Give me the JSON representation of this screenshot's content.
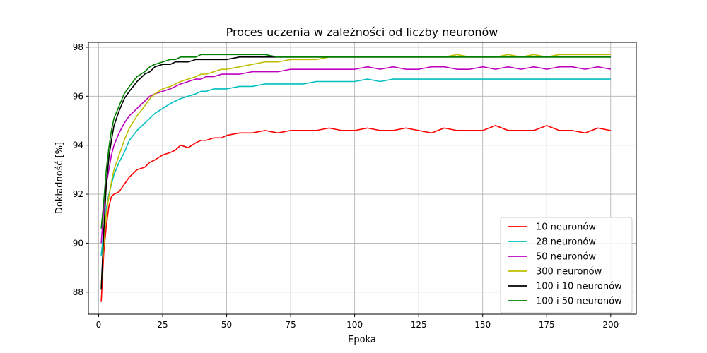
{
  "chart_data": {
    "type": "line",
    "title": "Proces uczenia w zależności od liczby neuronów",
    "xlabel": "Epoka",
    "ylabel": "Dokładność [%]",
    "xlim": [
      -4,
      210
    ],
    "ylim": [
      87.1,
      98.2
    ],
    "xticks": [
      0,
      25,
      50,
      75,
      100,
      125,
      150,
      175,
      200
    ],
    "yticks": [
      88,
      90,
      92,
      94,
      96,
      98
    ],
    "grid": true,
    "legend_position": "lower-right",
    "series": [
      {
        "name": "10 neuronów",
        "color": "#ff0000",
        "x": [
          1,
          2,
          3,
          4,
          5,
          6,
          8,
          10,
          12,
          15,
          18,
          20,
          22,
          25,
          28,
          30,
          32,
          35,
          38,
          40,
          42,
          45,
          48,
          50,
          55,
          60,
          65,
          70,
          75,
          80,
          85,
          90,
          95,
          100,
          105,
          110,
          115,
          120,
          125,
          130,
          135,
          140,
          145,
          150,
          155,
          160,
          165,
          170,
          175,
          180,
          185,
          190,
          195,
          200
        ],
        "y": [
          87.6,
          89.6,
          90.7,
          91.5,
          91.9,
          92.0,
          92.1,
          92.4,
          92.7,
          93.0,
          93.1,
          93.3,
          93.4,
          93.6,
          93.7,
          93.8,
          94.0,
          93.9,
          94.1,
          94.2,
          94.2,
          94.3,
          94.3,
          94.4,
          94.5,
          94.5,
          94.6,
          94.5,
          94.6,
          94.6,
          94.6,
          94.7,
          94.6,
          94.6,
          94.7,
          94.6,
          94.6,
          94.7,
          94.6,
          94.5,
          94.7,
          94.6,
          94.6,
          94.6,
          94.8,
          94.6,
          94.6,
          94.6,
          94.8,
          94.6,
          94.6,
          94.5,
          94.7,
          94.6
        ]
      },
      {
        "name": "28 neuronów",
        "color": "#00bfbf",
        "x": [
          1,
          2,
          3,
          4,
          5,
          6,
          8,
          10,
          12,
          15,
          18,
          20,
          22,
          25,
          28,
          30,
          32,
          35,
          38,
          40,
          42,
          45,
          48,
          50,
          55,
          60,
          65,
          70,
          75,
          80,
          85,
          90,
          95,
          100,
          105,
          110,
          115,
          120,
          125,
          130,
          135,
          140,
          145,
          150,
          155,
          160,
          165,
          170,
          175,
          180,
          185,
          190,
          195,
          200
        ],
        "y": [
          89.5,
          90.5,
          91.4,
          92.0,
          92.4,
          92.8,
          93.3,
          93.7,
          94.2,
          94.6,
          94.9,
          95.1,
          95.3,
          95.5,
          95.7,
          95.8,
          95.9,
          96.0,
          96.1,
          96.2,
          96.2,
          96.3,
          96.3,
          96.3,
          96.4,
          96.4,
          96.5,
          96.5,
          96.5,
          96.5,
          96.6,
          96.6,
          96.6,
          96.6,
          96.7,
          96.6,
          96.7,
          96.7,
          96.7,
          96.7,
          96.7,
          96.7,
          96.7,
          96.7,
          96.7,
          96.7,
          96.7,
          96.7,
          96.7,
          96.7,
          96.7,
          96.7,
          96.7,
          96.7
        ]
      },
      {
        "name": "50 neuronów",
        "color": "#bf00bf",
        "x": [
          1,
          2,
          3,
          4,
          5,
          6,
          8,
          10,
          12,
          15,
          18,
          20,
          22,
          25,
          28,
          30,
          32,
          35,
          38,
          40,
          42,
          45,
          48,
          50,
          55,
          60,
          65,
          70,
          75,
          80,
          85,
          90,
          95,
          100,
          105,
          110,
          115,
          120,
          125,
          130,
          135,
          140,
          145,
          150,
          155,
          160,
          165,
          170,
          175,
          180,
          185,
          190,
          195,
          200
        ],
        "y": [
          90.0,
          91.4,
          92.4,
          93.0,
          93.6,
          94.0,
          94.5,
          94.9,
          95.2,
          95.5,
          95.8,
          96.0,
          96.1,
          96.2,
          96.3,
          96.4,
          96.5,
          96.6,
          96.7,
          96.7,
          96.8,
          96.8,
          96.9,
          96.9,
          96.9,
          97.0,
          97.0,
          97.0,
          97.1,
          97.1,
          97.1,
          97.1,
          97.1,
          97.1,
          97.2,
          97.1,
          97.2,
          97.1,
          97.1,
          97.2,
          97.2,
          97.1,
          97.1,
          97.2,
          97.1,
          97.2,
          97.1,
          97.2,
          97.1,
          97.2,
          97.2,
          97.1,
          97.2,
          97.1
        ]
      },
      {
        "name": "300 neuronów",
        "color": "#bfbf00",
        "x": [
          1,
          2,
          3,
          4,
          5,
          6,
          8,
          10,
          12,
          15,
          18,
          20,
          22,
          25,
          28,
          30,
          32,
          35,
          38,
          40,
          42,
          45,
          48,
          50,
          55,
          60,
          65,
          70,
          75,
          80,
          85,
          90,
          95,
          100,
          105,
          110,
          115,
          120,
          125,
          130,
          135,
          140,
          145,
          150,
          155,
          160,
          165,
          170,
          175,
          180,
          185,
          190,
          195,
          200
        ],
        "y": [
          88.2,
          90.0,
          91.2,
          91.9,
          92.5,
          93.0,
          93.6,
          94.2,
          94.7,
          95.2,
          95.6,
          95.9,
          96.1,
          96.3,
          96.4,
          96.5,
          96.6,
          96.7,
          96.8,
          96.9,
          96.9,
          97.0,
          97.1,
          97.1,
          97.2,
          97.3,
          97.4,
          97.4,
          97.5,
          97.5,
          97.5,
          97.6,
          97.6,
          97.6,
          97.6,
          97.6,
          97.6,
          97.6,
          97.6,
          97.6,
          97.6,
          97.7,
          97.6,
          97.6,
          97.6,
          97.7,
          97.6,
          97.7,
          97.6,
          97.7,
          97.7,
          97.7,
          97.7,
          97.7
        ]
      },
      {
        "name": "100 i 10 neuronów",
        "color": "#000000",
        "x": [
          1,
          2,
          3,
          4,
          5,
          6,
          8,
          10,
          12,
          15,
          18,
          20,
          22,
          25,
          28,
          30,
          32,
          35,
          38,
          40,
          42,
          45,
          48,
          50,
          55,
          60,
          65,
          70,
          75,
          80,
          85,
          90,
          95,
          100,
          105,
          110,
          115,
          120,
          125,
          130,
          135,
          140,
          145,
          150,
          155,
          160,
          165,
          170,
          175,
          180,
          185,
          190,
          195,
          200
        ],
        "y": [
          88.1,
          90.5,
          92.4,
          93.5,
          94.2,
          94.8,
          95.4,
          95.9,
          96.2,
          96.6,
          96.9,
          97.0,
          97.2,
          97.3,
          97.3,
          97.4,
          97.4,
          97.4,
          97.5,
          97.5,
          97.5,
          97.5,
          97.5,
          97.5,
          97.6,
          97.6,
          97.6,
          97.6,
          97.6,
          97.6,
          97.6,
          97.6,
          97.6,
          97.6,
          97.6,
          97.6,
          97.6,
          97.6,
          97.6,
          97.6,
          97.6,
          97.6,
          97.6,
          97.6,
          97.6,
          97.6,
          97.6,
          97.6,
          97.6,
          97.6,
          97.6,
          97.6,
          97.6,
          97.6
        ]
      },
      {
        "name": "100 i 50 neuronów",
        "color": "#008000",
        "x": [
          1,
          2,
          3,
          4,
          5,
          6,
          8,
          10,
          12,
          15,
          18,
          20,
          22,
          25,
          28,
          30,
          32,
          35,
          38,
          40,
          42,
          45,
          48,
          50,
          55,
          60,
          65,
          70,
          75,
          80,
          85,
          90,
          95,
          100,
          105,
          110,
          115,
          120,
          125,
          130,
          135,
          140,
          145,
          150,
          155,
          160,
          165,
          170,
          175,
          180,
          185,
          190,
          195,
          200
        ],
        "y": [
          90.6,
          91.7,
          93.0,
          93.9,
          94.6,
          95.1,
          95.6,
          96.1,
          96.4,
          96.8,
          97.0,
          97.2,
          97.3,
          97.4,
          97.5,
          97.5,
          97.6,
          97.6,
          97.6,
          97.7,
          97.7,
          97.7,
          97.7,
          97.7,
          97.7,
          97.7,
          97.7,
          97.6,
          97.6,
          97.6,
          97.6,
          97.6,
          97.6,
          97.6,
          97.6,
          97.6,
          97.6,
          97.6,
          97.6,
          97.6,
          97.6,
          97.6,
          97.6,
          97.6,
          97.6,
          97.6,
          97.6,
          97.6,
          97.6,
          97.6,
          97.6,
          97.6,
          97.6,
          97.6
        ]
      }
    ]
  }
}
